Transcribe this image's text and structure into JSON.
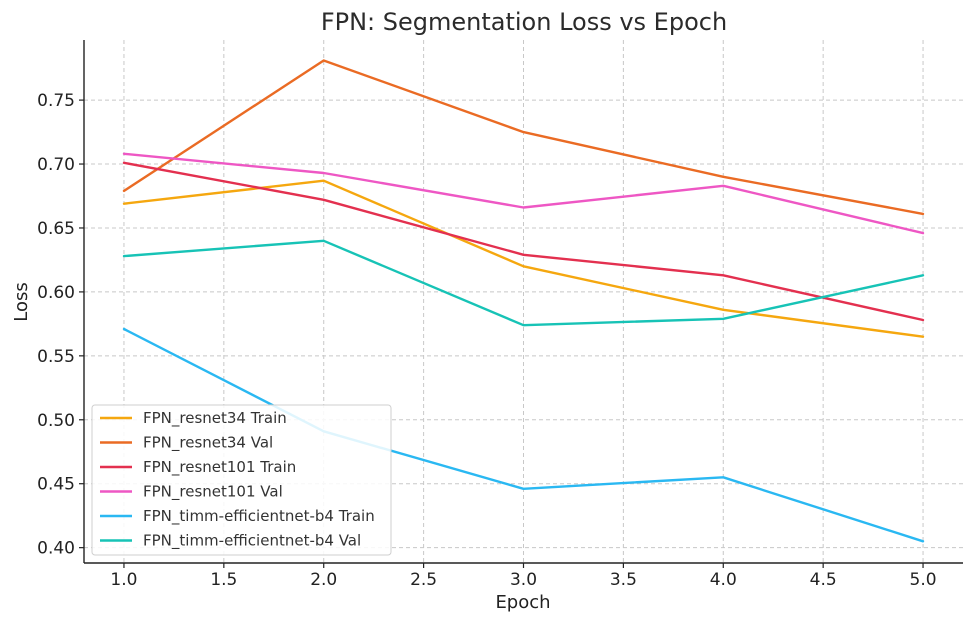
{
  "chart_data": {
    "type": "line",
    "title": "FPN: Segmentation Loss vs Epoch",
    "xlabel": "Epoch",
    "ylabel": "Loss",
    "xlim": [
      0.8,
      5.2
    ],
    "ylim": [
      0.388,
      0.797
    ],
    "grid": true,
    "legend_position": "lower-left",
    "x_ticks": [
      1.0,
      1.5,
      2.0,
      2.5,
      3.0,
      3.5,
      4.0,
      4.5,
      5.0
    ],
    "x_tick_labels": [
      "1.0",
      "1.5",
      "2.0",
      "2.5",
      "3.0",
      "3.5",
      "4.0",
      "4.5",
      "5.0"
    ],
    "y_ticks": [
      0.4,
      0.45,
      0.5,
      0.55,
      0.6,
      0.65,
      0.7,
      0.75
    ],
    "y_tick_labels": [
      "0.40",
      "0.45",
      "0.50",
      "0.55",
      "0.60",
      "0.65",
      "0.70",
      "0.75"
    ],
    "x": [
      1,
      2,
      3,
      4,
      5
    ],
    "series": [
      {
        "name": "FPN_resnet34 Train",
        "color": "#f5a70f",
        "values": [
          0.669,
          0.687,
          0.62,
          0.586,
          0.565
        ]
      },
      {
        "name": "FPN_resnet34 Val",
        "color": "#ea6b24",
        "values": [
          0.679,
          0.781,
          0.725,
          0.69,
          0.661
        ]
      },
      {
        "name": "FPN_resnet101 Train",
        "color": "#e3304f",
        "values": [
          0.701,
          0.672,
          0.629,
          0.613,
          0.578
        ]
      },
      {
        "name": "FPN_resnet101 Val",
        "color": "#ee57c4",
        "values": [
          0.708,
          0.693,
          0.666,
          0.683,
          0.646
        ]
      },
      {
        "name": "FPN_timm-efficientnet-b4 Train",
        "color": "#2ab8f2",
        "values": [
          0.571,
          0.491,
          0.446,
          0.455,
          0.405
        ]
      },
      {
        "name": "FPN_timm-efficientnet-b4 Val",
        "color": "#17c3b6",
        "values": [
          0.628,
          0.64,
          0.574,
          0.579,
          0.613
        ]
      }
    ]
  }
}
